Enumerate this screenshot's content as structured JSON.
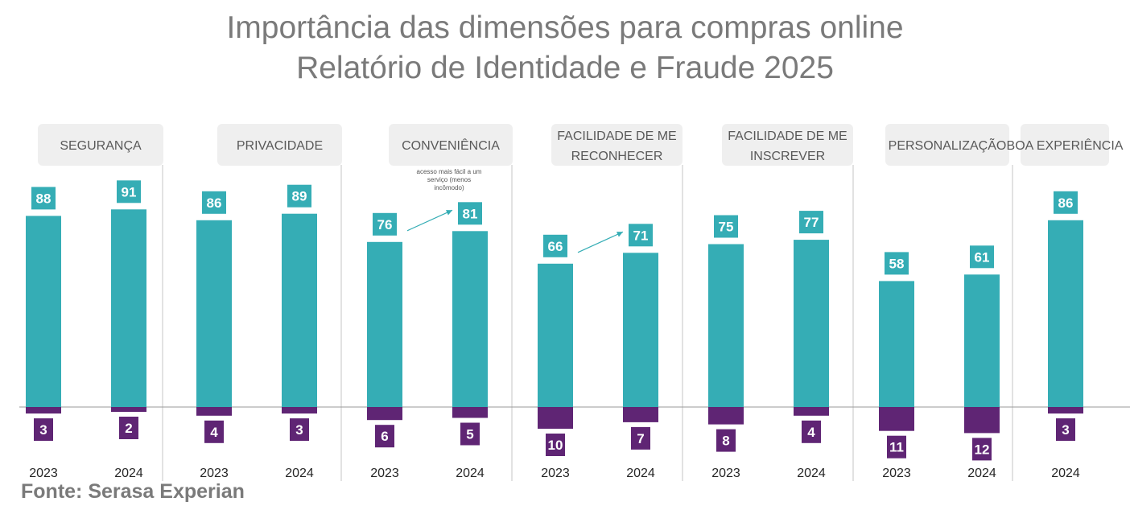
{
  "title": {
    "line1": "Importância das dimensões para compras online",
    "line2": "Relatório de Identidade e Fraude 2025"
  },
  "source": "Fonte: Serasa Experian",
  "annotation": "acesso mais fácil a um serviço (menos incômodo)",
  "colors": {
    "positive": "#35adb5",
    "negative": "#5f2574",
    "header_bg": "#efefef",
    "header_text": "#595959",
    "title": "#7a7a7a",
    "divider": "#c6c6c6",
    "arrow": "#35adb5"
  },
  "chart_data": {
    "type": "bar",
    "title": "Importância das dimensões para compras online",
    "subtitle": "Relatório de Identidade e Fraude 2025",
    "grid": false,
    "legend": "none",
    "groups": [
      {
        "category": "SEGURANÇA",
        "bars": [
          {
            "year": "2023",
            "positive": 88,
            "negative": 3
          },
          {
            "year": "2024",
            "positive": 91,
            "negative": 2
          }
        ]
      },
      {
        "category": "PRIVACIDADE",
        "bars": [
          {
            "year": "2023",
            "positive": 86,
            "negative": 4
          },
          {
            "year": "2024",
            "positive": 89,
            "negative": 3
          }
        ]
      },
      {
        "category": "CONVENIÊNCIA",
        "bars": [
          {
            "year": "2023",
            "positive": 76,
            "negative": 6
          },
          {
            "year": "2024",
            "positive": 81,
            "negative": 5
          }
        ]
      },
      {
        "category": "FACILIDADE DE ME RECONHECER",
        "bars": [
          {
            "year": "2023",
            "positive": 66,
            "negative": 10
          },
          {
            "year": "2024",
            "positive": 71,
            "negative": 7
          }
        ]
      },
      {
        "category": "FACILIDADE DE ME INSCREVER",
        "bars": [
          {
            "year": "2023",
            "positive": 75,
            "negative": 8
          },
          {
            "year": "2024",
            "positive": 77,
            "negative": 4
          }
        ]
      },
      {
        "category": "PERSONALIZAÇÃO",
        "bars": [
          {
            "year": "2023",
            "positive": 58,
            "negative": 11
          },
          {
            "year": "2024",
            "positive": 61,
            "negative": 12
          }
        ]
      },
      {
        "category": "BOA EXPERIÊNCIA",
        "bars": [
          {
            "year": "2024",
            "positive": 86,
            "negative": 3
          }
        ]
      }
    ]
  }
}
